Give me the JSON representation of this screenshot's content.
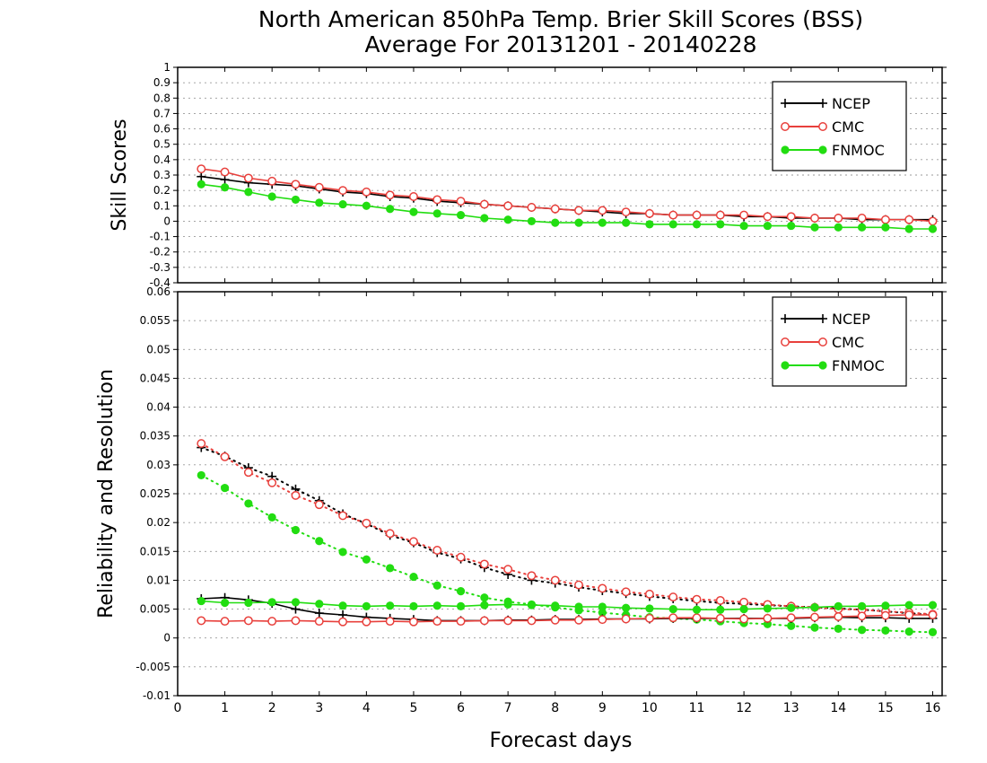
{
  "title": {
    "line1": "North American 850hPa Temp. Brier Skill Scores (BSS)",
    "line2": "Average For 20131201 - 20140228"
  },
  "colors": {
    "NCEP": "#000000",
    "CMC": "#e8403c",
    "FNMOC": "#22dd11",
    "grid": "#999999"
  },
  "chart_data": [
    {
      "type": "line",
      "ylabel": "Skill Scores",
      "ylim": [
        -0.4,
        1
      ],
      "yticks": [
        "1",
        "0.9",
        "0.8",
        "0.7",
        "0.6",
        "0.5",
        "0.4",
        "0.3",
        "0.2",
        "0.1",
        "0",
        "-0.1",
        "-0.2",
        "-0.3",
        "-0.4"
      ],
      "xlim": [
        0,
        16.2
      ],
      "grid": "dotted horizontal",
      "legend": [
        "NCEP",
        "CMC",
        "FNMOC"
      ],
      "legend_placement": "top-right",
      "x": [
        0.5,
        1,
        1.5,
        2,
        2.5,
        3,
        3.5,
        4,
        4.5,
        5,
        5.5,
        6,
        6.5,
        7,
        7.5,
        8,
        8.5,
        9,
        9.5,
        10,
        10.5,
        11,
        11.5,
        12,
        12.5,
        13,
        13.5,
        14,
        14.5,
        15,
        15.5,
        16
      ],
      "series": [
        {
          "name": "NCEP",
          "style": "line-plus",
          "values": [
            0.29,
            0.27,
            0.25,
            0.24,
            0.23,
            0.21,
            0.19,
            0.18,
            0.16,
            0.15,
            0.13,
            0.12,
            0.11,
            0.1,
            0.09,
            0.08,
            0.07,
            0.06,
            0.05,
            0.05,
            0.04,
            0.04,
            0.04,
            0.03,
            0.03,
            0.02,
            0.02,
            0.02,
            0.01,
            0.01,
            0.01,
            0.01
          ]
        },
        {
          "name": "CMC",
          "style": "line-open-circle",
          "values": [
            0.34,
            0.32,
            0.28,
            0.26,
            0.24,
            0.22,
            0.2,
            0.19,
            0.17,
            0.16,
            0.14,
            0.13,
            0.11,
            0.1,
            0.09,
            0.08,
            0.07,
            0.07,
            0.06,
            0.05,
            0.04,
            0.04,
            0.04,
            0.04,
            0.03,
            0.03,
            0.02,
            0.02,
            0.02,
            0.01,
            0.01,
            0.0
          ]
        },
        {
          "name": "FNMOC",
          "style": "line-filled-circle",
          "values": [
            0.24,
            0.22,
            0.19,
            0.16,
            0.14,
            0.12,
            0.11,
            0.1,
            0.08,
            0.06,
            0.05,
            0.04,
            0.02,
            0.01,
            0.0,
            -0.01,
            -0.01,
            -0.01,
            -0.01,
            -0.02,
            -0.02,
            -0.02,
            -0.02,
            -0.03,
            -0.03,
            -0.03,
            -0.04,
            -0.04,
            -0.04,
            -0.04,
            -0.05,
            -0.05
          ]
        }
      ]
    },
    {
      "type": "line",
      "ylabel": "Reliability and Resolution",
      "xlabel": "Forecast days",
      "ylim": [
        -0.01,
        0.06
      ],
      "yticks": [
        "0.06",
        "0.055",
        "0.05",
        "0.045",
        "0.04",
        "0.035",
        "0.03",
        "0.025",
        "0.02",
        "0.015",
        "0.01",
        "0.005",
        "0",
        "-0.005",
        "-0.01"
      ],
      "xlim": [
        0,
        16.2
      ],
      "xticks": [
        "0",
        "1",
        "2",
        "3",
        "4",
        "5",
        "6",
        "7",
        "8",
        "9",
        "10",
        "11",
        "12",
        "13",
        "14",
        "15",
        "16"
      ],
      "grid": "dotted horizontal",
      "legend": [
        "NCEP",
        "CMC",
        "FNMOC"
      ],
      "legend_placement": "top-right",
      "x": [
        0.5,
        1,
        1.5,
        2,
        2.5,
        3,
        3.5,
        4,
        4.5,
        5,
        5.5,
        6,
        6.5,
        7,
        7.5,
        8,
        8.5,
        9,
        9.5,
        10,
        10.5,
        11,
        11.5,
        12,
        12.5,
        13,
        13.5,
        14,
        14.5,
        15,
        15.5,
        16
      ],
      "series": [
        {
          "name": "NCEP",
          "kind": "resolution",
          "style": "dotted-plus",
          "values": [
            0.033,
            0.0315,
            0.0295,
            0.028,
            0.0258,
            0.0238,
            0.0215,
            0.0198,
            0.0178,
            0.0165,
            0.0148,
            0.0137,
            0.0122,
            0.011,
            0.01,
            0.0095,
            0.0088,
            0.0082,
            0.0077,
            0.0072,
            0.0068,
            0.0064,
            0.0061,
            0.0059,
            0.0057,
            0.0055,
            0.0053,
            0.0051,
            0.0049,
            0.0046,
            0.0043,
            0.004
          ]
        },
        {
          "name": "CMC",
          "kind": "resolution",
          "style": "dotted-open-circle",
          "values": [
            0.0337,
            0.0314,
            0.0287,
            0.0269,
            0.0247,
            0.0231,
            0.0212,
            0.0199,
            0.0181,
            0.0167,
            0.0152,
            0.014,
            0.0128,
            0.0119,
            0.0108,
            0.01,
            0.0092,
            0.0086,
            0.008,
            0.0076,
            0.0071,
            0.0067,
            0.0065,
            0.0062,
            0.0058,
            0.0055,
            0.0053,
            0.005,
            0.0049,
            0.0046,
            0.0044,
            0.0041
          ]
        },
        {
          "name": "FNMOC",
          "kind": "resolution",
          "style": "dotted-filled-circle",
          "values": [
            0.0282,
            0.026,
            0.0233,
            0.0209,
            0.0187,
            0.0168,
            0.0149,
            0.0136,
            0.0121,
            0.0106,
            0.0091,
            0.0081,
            0.007,
            0.0063,
            0.0058,
            0.0053,
            0.0048,
            0.0044,
            0.004,
            0.0036,
            0.0034,
            0.0032,
            0.0029,
            0.0026,
            0.0024,
            0.0021,
            0.0018,
            0.0016,
            0.0014,
            0.0013,
            0.0011,
            0.001
          ]
        },
        {
          "name": "NCEP",
          "kind": "reliability",
          "style": "line-plus",
          "values": [
            0.0068,
            0.007,
            0.0066,
            0.006,
            0.005,
            0.0043,
            0.004,
            0.0036,
            0.0034,
            0.0032,
            0.003,
            0.003,
            0.003,
            0.0031,
            0.0031,
            0.0032,
            0.0032,
            0.0033,
            0.0033,
            0.0033,
            0.0034,
            0.0034,
            0.0034,
            0.0034,
            0.0034,
            0.0034,
            0.0035,
            0.0036,
            0.0035,
            0.0035,
            0.0034,
            0.0034
          ]
        },
        {
          "name": "CMC",
          "kind": "reliability",
          "style": "line-open-circle",
          "values": [
            0.003,
            0.0029,
            0.003,
            0.0029,
            0.003,
            0.0029,
            0.0028,
            0.0028,
            0.0029,
            0.0028,
            0.0029,
            0.0029,
            0.003,
            0.003,
            0.003,
            0.0031,
            0.0031,
            0.0032,
            0.0033,
            0.0034,
            0.0035,
            0.0035,
            0.0034,
            0.0033,
            0.0034,
            0.0035,
            0.0036,
            0.0037,
            0.0038,
            0.0039,
            0.004,
            0.004
          ]
        },
        {
          "name": "FNMOC",
          "kind": "reliability",
          "style": "line-filled-circle",
          "values": [
            0.0064,
            0.0061,
            0.0061,
            0.0062,
            0.0062,
            0.0059,
            0.0056,
            0.0055,
            0.0056,
            0.0055,
            0.0056,
            0.0055,
            0.0057,
            0.0058,
            0.0057,
            0.0056,
            0.0054,
            0.0054,
            0.0052,
            0.0051,
            0.005,
            0.0049,
            0.0049,
            0.005,
            0.0051,
            0.0052,
            0.0053,
            0.0055,
            0.0055,
            0.0056,
            0.0057,
            0.0057
          ]
        }
      ]
    }
  ]
}
